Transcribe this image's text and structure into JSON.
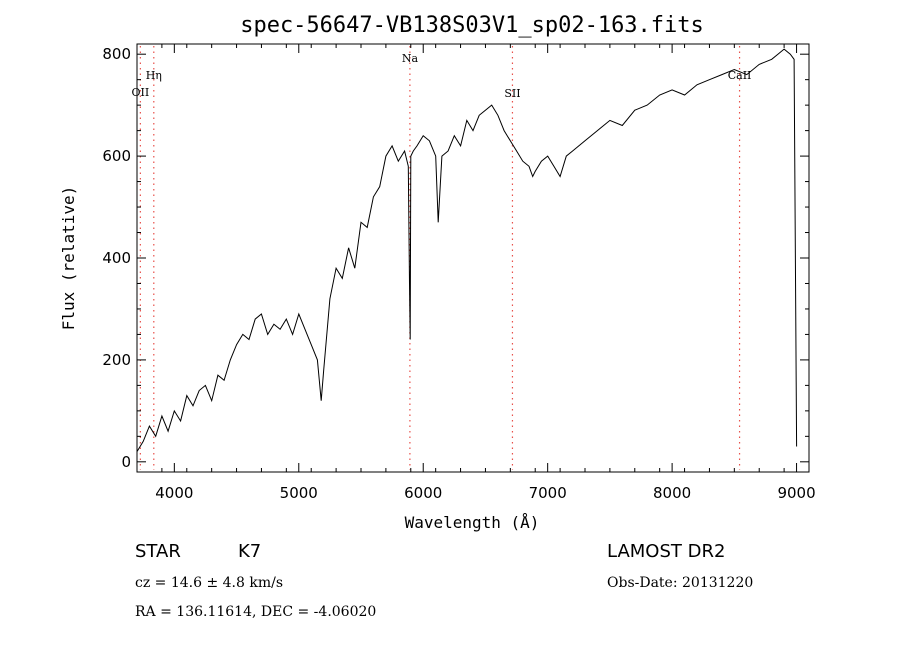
{
  "chart_data": {
    "type": "line",
    "title": "spec-56647-VB138S03V1_sp02-163.fits",
    "xlabel": "Wavelength (Å)",
    "ylabel": "Flux (relative)",
    "xlim": [
      3700,
      9100
    ],
    "ylim": [
      -20,
      820
    ],
    "xticks": [
      4000,
      5000,
      6000,
      7000,
      8000,
      9000
    ],
    "yticks": [
      0,
      200,
      400,
      600,
      800
    ],
    "line_color": "#000000",
    "marker_color": "#e8504a",
    "grid": false,
    "series": [
      {
        "x": [
          3700,
          3750,
          3800,
          3850,
          3900,
          3950,
          4000,
          4050,
          4100,
          4150,
          4200,
          4250,
          4300,
          4350,
          4400,
          4450,
          4500,
          4550,
          4600,
          4650,
          4700,
          4750,
          4800,
          4850,
          4900,
          4950,
          5000,
          5050,
          5100,
          5150,
          5180,
          5200,
          5250,
          5300,
          5350,
          5400,
          5450,
          5500,
          5550,
          5600,
          5650,
          5700,
          5750,
          5800,
          5850,
          5880,
          5890,
          5895,
          5900,
          5920,
          5950,
          6000,
          6050,
          6100,
          6120,
          6150,
          6200,
          6250,
          6300,
          6350,
          6400,
          6450,
          6500,
          6550,
          6600,
          6650,
          6700,
          6750,
          6800,
          6850,
          6880,
          6900,
          6950,
          7000,
          7050,
          7100,
          7150,
          7200,
          7300,
          7400,
          7500,
          7600,
          7700,
          7800,
          7900,
          8000,
          8100,
          8200,
          8300,
          8400,
          8500,
          8600,
          8700,
          8800,
          8850,
          8900,
          8950,
          8980,
          9000
        ],
        "y": [
          20,
          40,
          70,
          50,
          90,
          60,
          100,
          80,
          130,
          110,
          140,
          150,
          120,
          170,
          160,
          200,
          230,
          250,
          240,
          280,
          290,
          250,
          270,
          260,
          280,
          250,
          290,
          260,
          230,
          200,
          120,
          180,
          320,
          380,
          360,
          420,
          380,
          470,
          460,
          520,
          540,
          600,
          620,
          590,
          610,
          580,
          350,
          240,
          600,
          610,
          620,
          640,
          630,
          600,
          470,
          600,
          610,
          640,
          620,
          670,
          650,
          680,
          690,
          700,
          680,
          650,
          630,
          610,
          590,
          580,
          560,
          570,
          590,
          600,
          580,
          560,
          600,
          610,
          630,
          650,
          670,
          660,
          690,
          700,
          720,
          730,
          720,
          740,
          750,
          760,
          770,
          760,
          780,
          790,
          800,
          810,
          800,
          790,
          30
        ]
      }
    ],
    "line_markers": [
      {
        "label": "OII",
        "x": 3727
      },
      {
        "label": "Hη",
        "x": 3835
      },
      {
        "label": "Na",
        "x": 5893
      },
      {
        "label": "SII",
        "x": 6717
      },
      {
        "label": "CaII",
        "x": 8542
      }
    ]
  },
  "info": {
    "class": "STAR",
    "subclass": "K7",
    "cz": "cz = 14.6 ± 4.8 km/s",
    "coords": "RA = 136.11614, DEC =  -4.06020",
    "survey": "LAMOST DR2",
    "obs_date": "Obs-Date: 20131220"
  }
}
